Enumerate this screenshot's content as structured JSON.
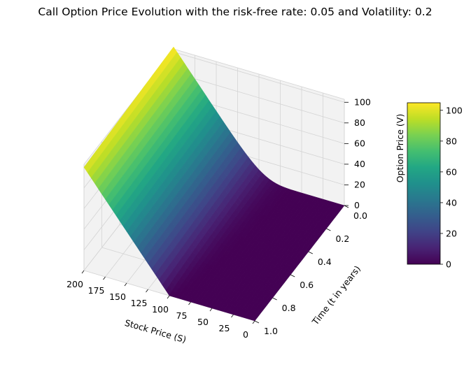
{
  "chart_data": {
    "type": "surface3d",
    "title": "Call Option Price Evolution with the risk-free rate: 0.05 and Volatility: 0.2",
    "xlabel": "Stock Price (S)",
    "ylabel": "Time (t in years)",
    "zlabel": "Option Price (V)",
    "xlim": [
      0,
      200
    ],
    "ylim": [
      0.0,
      1.0
    ],
    "zlim": [
      0,
      105
    ],
    "x_ticks": [
      0,
      25,
      50,
      75,
      100,
      125,
      150,
      175,
      200
    ],
    "x_tick_labels": [
      "0",
      "25",
      "50",
      "75",
      "100",
      "125",
      "150",
      "175",
      "200"
    ],
    "y_ticks": [
      0.0,
      0.2,
      0.4,
      0.6,
      0.8,
      1.0
    ],
    "y_tick_labels": [
      "0.0",
      "0.2",
      "0.4",
      "0.6",
      "0.8",
      "1.0"
    ],
    "z_ticks": [
      0,
      20,
      40,
      60,
      80,
      100
    ],
    "z_tick_labels": [
      "0",
      "20",
      "40",
      "60",
      "80",
      "100"
    ],
    "strike": 100,
    "maturity": 1.0,
    "risk_free_rate": 0.05,
    "volatility": 0.2,
    "colormap": "viridis",
    "grid": true,
    "colorbar": {
      "min": 0,
      "max": 104.9,
      "ticks": [
        0,
        20,
        40,
        60,
        80,
        100
      ],
      "tick_labels": [
        "0",
        "20",
        "40",
        "60",
        "80",
        "100"
      ],
      "position": "right"
    },
    "pane_color": "#f2f2f2",
    "grid_color": "#d4d4d4"
  }
}
